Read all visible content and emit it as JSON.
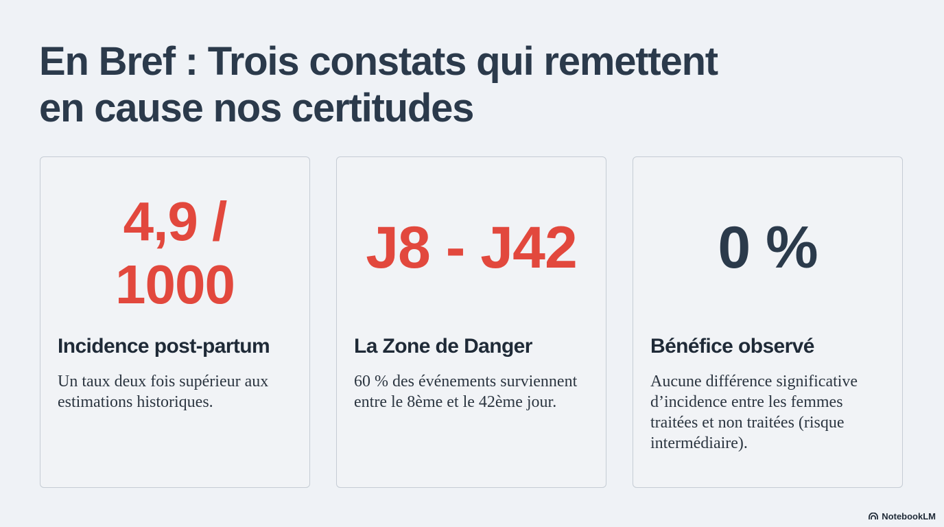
{
  "title": {
    "line1": "En Bref : Trois constats qui remettent",
    "line2": "en cause nos certitudes"
  },
  "cards": [
    {
      "stat_line1": "4,9 /",
      "stat_line2": "1000",
      "stat_color": "#e2483d",
      "heading": "Incidence post-partum",
      "body": "Un taux deux fois supérieur aux estimations historiques."
    },
    {
      "stat": "J8 - J42",
      "stat_color": "#e2483d",
      "heading": "La Zone de Danger",
      "body": "60 % des événements surviennent entre le 8ème et le 42ème jour."
    },
    {
      "stat": "0 %",
      "stat_color": "#2b3a4b",
      "heading": "Bénéfice observé",
      "body": "Aucune différence significative d’incidence entre les femmes traitées et non traitées (risque intermédiaire)."
    }
  ],
  "brand": {
    "icon": "notebooklm-logo-icon",
    "label": "NotebookLM"
  }
}
